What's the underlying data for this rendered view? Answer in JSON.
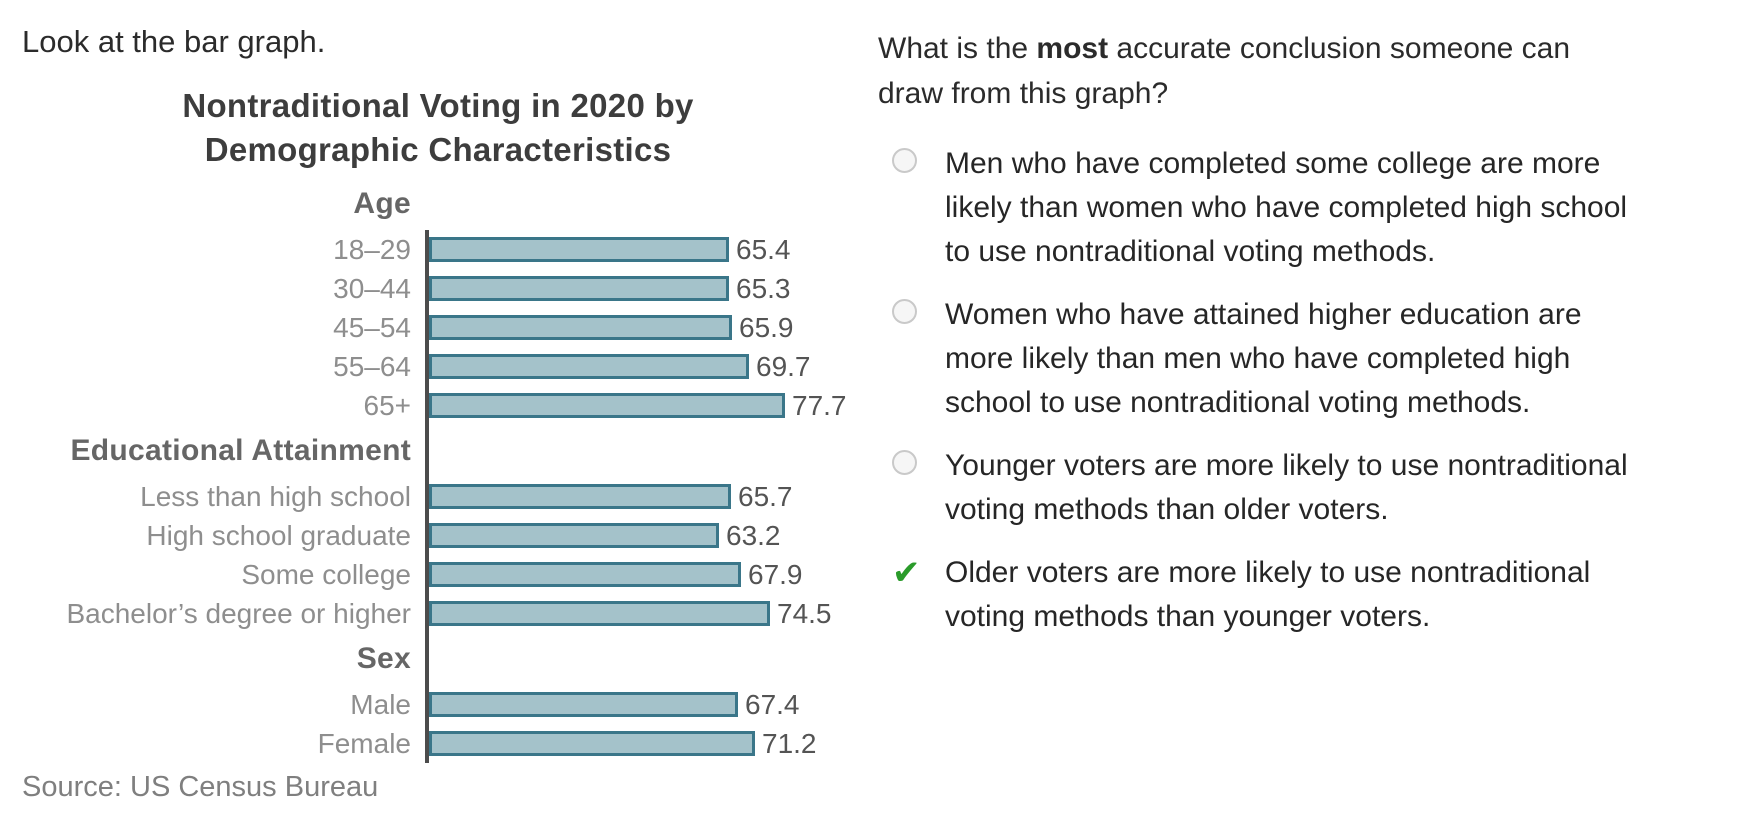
{
  "page": {
    "intro": "Look at the bar graph."
  },
  "question": {
    "prefix": "What is the ",
    "bold": "most",
    "suffix": " accurate conclusion someone can\ndraw from this graph?"
  },
  "options": [
    {
      "state": "unselected",
      "lines": [
        "Men who have completed some college are more",
        "likely than women who have completed high school",
        "to use nontraditional voting methods."
      ]
    },
    {
      "state": "unselected",
      "lines": [
        "Women who have attained higher education are",
        "more likely than men who have completed high",
        "school to use nontraditional voting methods."
      ]
    },
    {
      "state": "unselected",
      "lines": [
        "Younger voters are more likely to use nontraditional",
        "voting methods than older voters."
      ]
    },
    {
      "state": "correct",
      "lines": [
        "Older voters are more likely to use nontraditional",
        "voting methods than younger voters."
      ]
    }
  ],
  "icons": {
    "correct_check": "✔",
    "radio_unselected": "circle-outline"
  },
  "colors": {
    "bar_fill": "#a4c2ca",
    "bar_border": "#3a7689",
    "axis": "#4c4c4c",
    "check_green": "#2a9b2a"
  },
  "chart_data": {
    "type": "bar",
    "orientation": "horizontal",
    "title": "Nontraditional Voting in 2020 by Demographic Characteristics",
    "title_lines": [
      "Nontraditional Voting in 2020 by",
      "Demographic Characteristics"
    ],
    "source": "Source: US Census Bureau",
    "xlabel": "",
    "ylabel": "",
    "xlim": [
      0,
      85
    ],
    "grid": false,
    "legend": false,
    "value_labels": true,
    "groups": [
      {
        "label": "Age",
        "bars": [
          {
            "label": "18–29",
            "value": 65.4
          },
          {
            "label": "30–44",
            "value": 65.3
          },
          {
            "label": "45–54",
            "value": 65.9
          },
          {
            "label": "55–64",
            "value": 69.7
          },
          {
            "label": "65+",
            "value": 77.7
          }
        ]
      },
      {
        "label": "Educational Attainment",
        "bars": [
          {
            "label": "Less than high school",
            "value": 65.7
          },
          {
            "label": "High school graduate",
            "value": 63.2
          },
          {
            "label": "Some college",
            "value": 67.9
          },
          {
            "label": "Bachelor’s degree or higher",
            "value": 74.5
          }
        ]
      },
      {
        "label": "Sex",
        "bars": [
          {
            "label": "Male",
            "value": 67.4
          },
          {
            "label": "Female",
            "value": 71.2
          }
        ]
      }
    ]
  }
}
